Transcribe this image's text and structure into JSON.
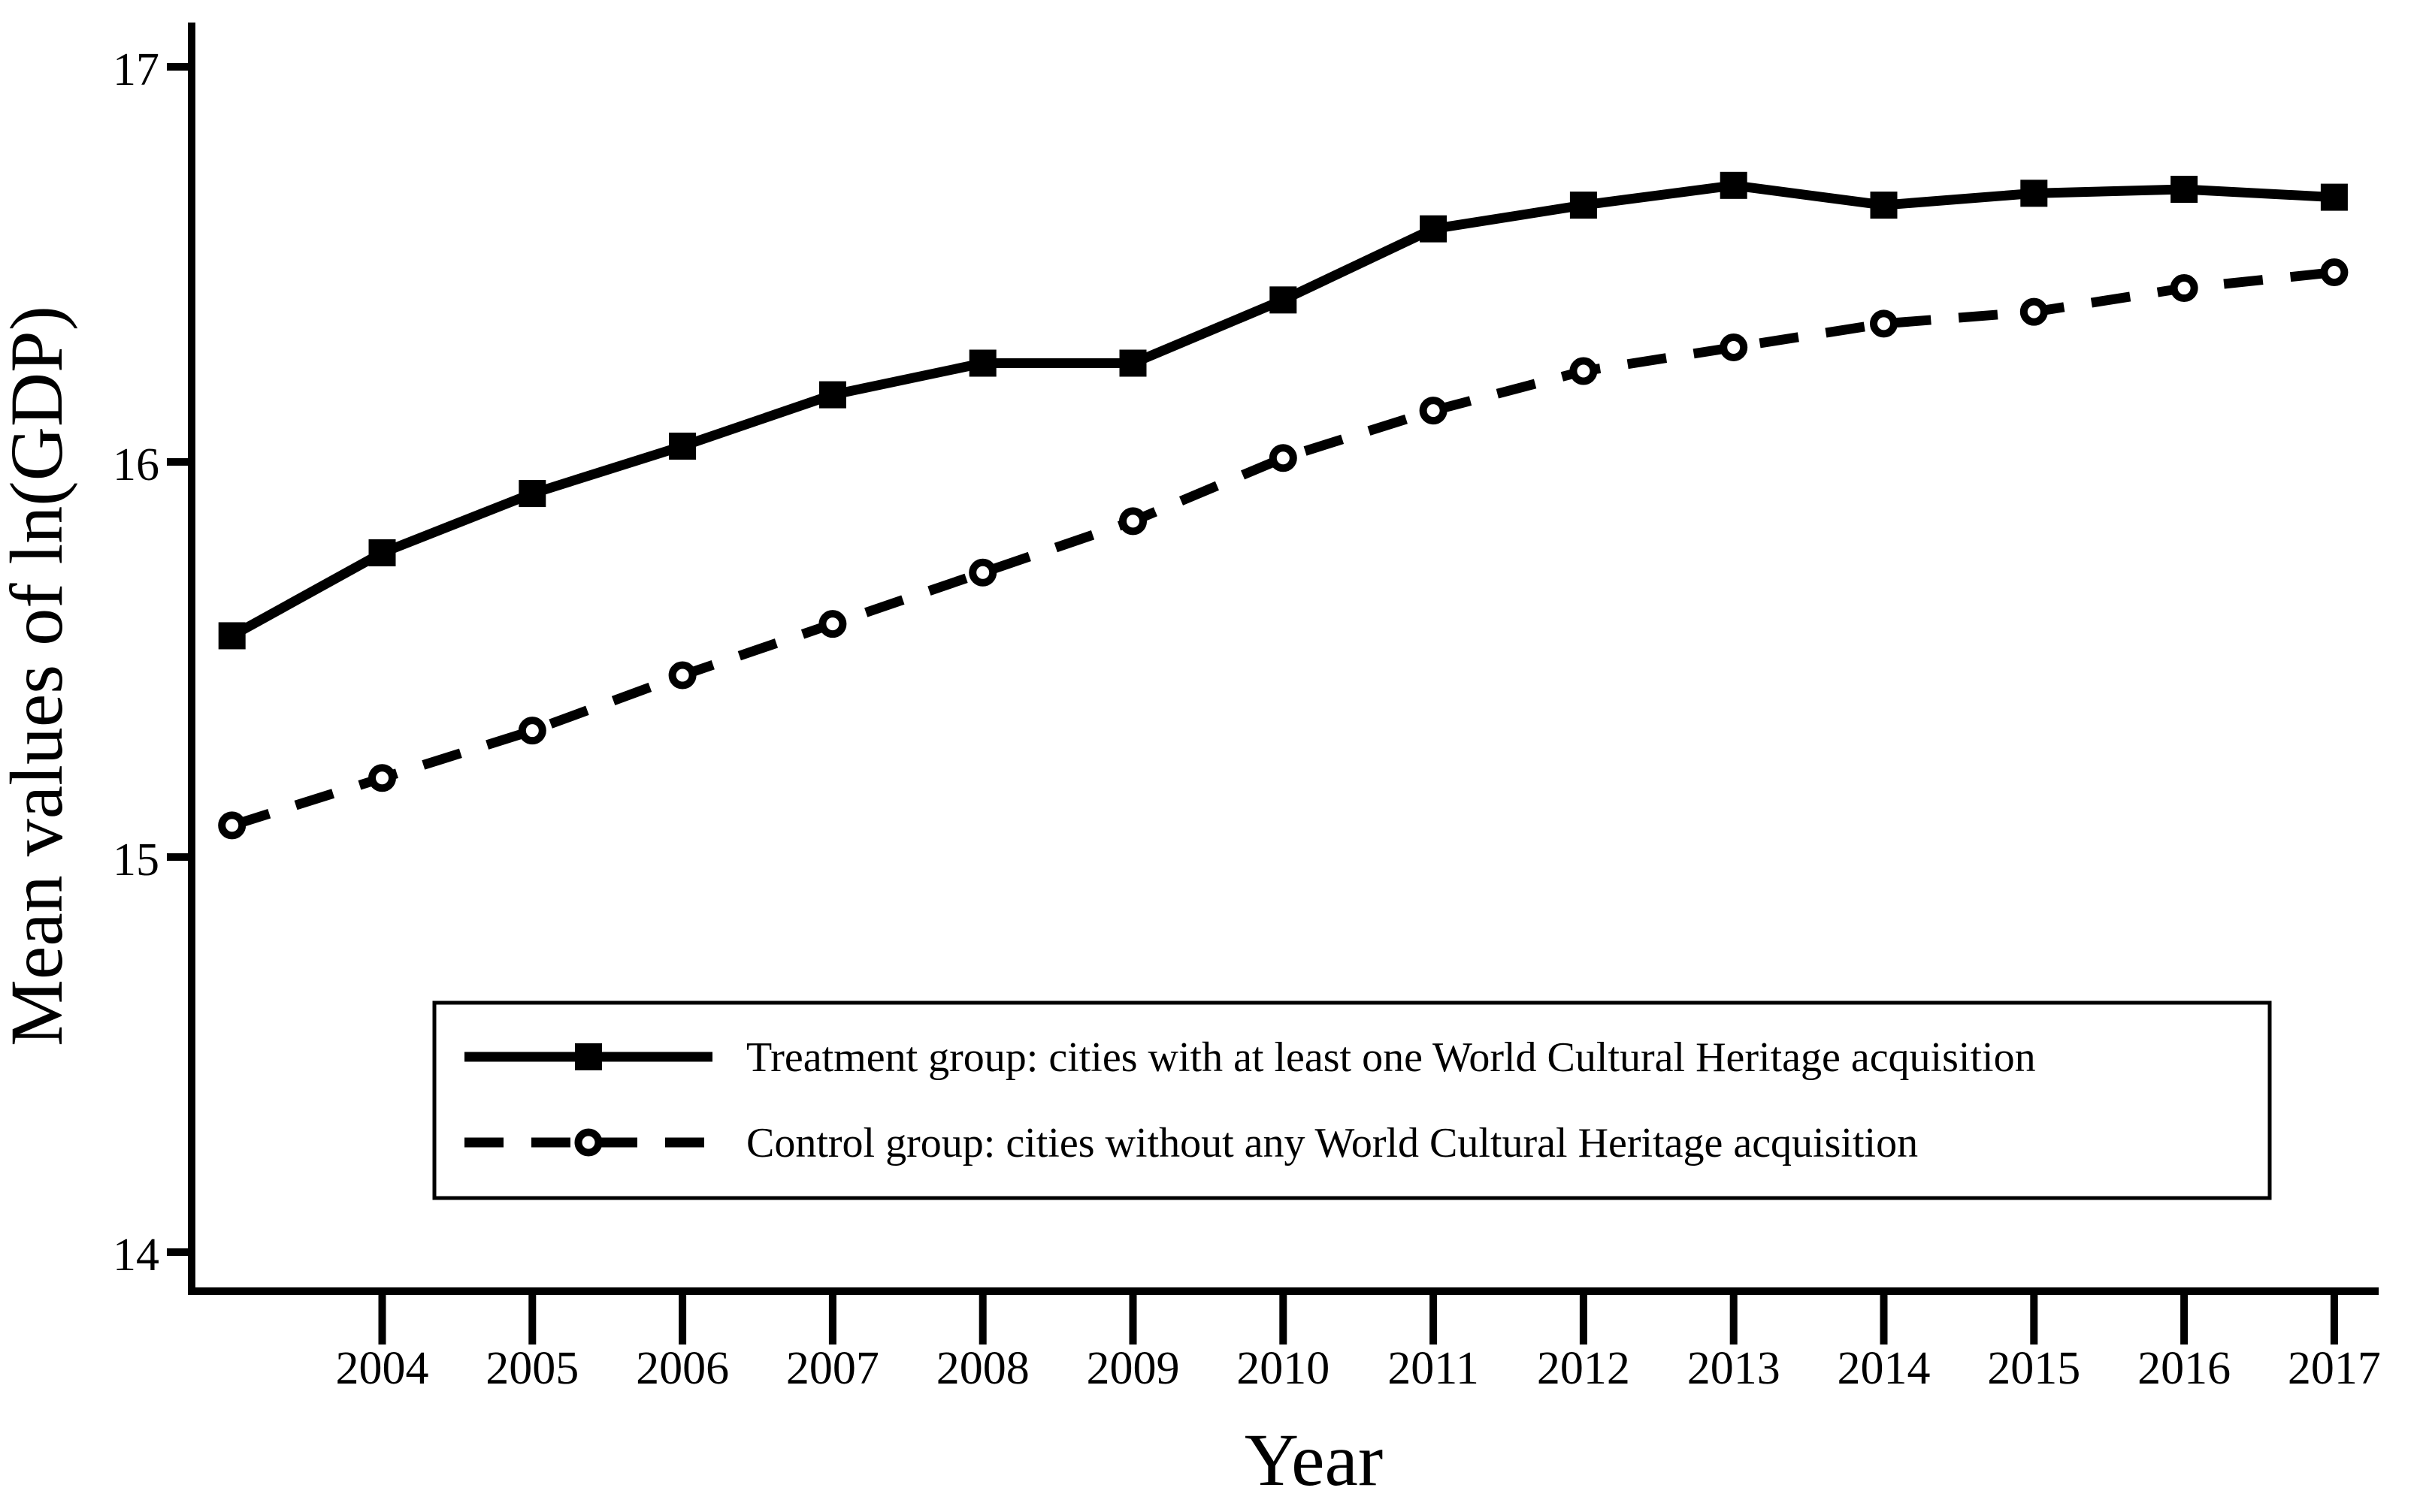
{
  "figure": {
    "background": "#ffffff",
    "ink": "#000000"
  },
  "chart_data": {
    "type": "line",
    "title": "",
    "xlabel": "Year",
    "ylabel": "Mean values of ln(GDP)",
    "x": [
      2003,
      2004,
      2005,
      2006,
      2007,
      2008,
      2009,
      2010,
      2011,
      2012,
      2013,
      2014,
      2015,
      2016,
      2017
    ],
    "x_tick_years": [
      2004,
      2005,
      2006,
      2007,
      2008,
      2009,
      2010,
      2011,
      2012,
      2013,
      2014,
      2015,
      2016,
      2017
    ],
    "y_ticks": [
      17,
      16,
      15,
      14
    ],
    "xlim": [
      2003,
      2017.3
    ],
    "ylim": [
      13.9,
      17.1
    ],
    "grid": false,
    "legend_position": "inside-bottom-left",
    "series": [
      {
        "id": "treatment",
        "name": "Treatment group: cities with at least one World Cultural Heritage acquisition",
        "line_style": "solid",
        "marker": "filled-square",
        "values": [
          15.56,
          15.77,
          15.92,
          16.04,
          16.17,
          16.25,
          16.25,
          16.41,
          16.59,
          16.65,
          16.7,
          16.65,
          16.68,
          16.69,
          16.67
        ]
      },
      {
        "id": "control",
        "name": "Control group: cities without any World Cultural Heritage acquisition",
        "line_style": "dashed",
        "marker": "open-circle",
        "values": [
          15.08,
          15.2,
          15.32,
          15.46,
          15.59,
          15.72,
          15.85,
          16.01,
          16.13,
          16.23,
          16.29,
          16.35,
          16.38,
          16.44,
          16.48
        ]
      }
    ]
  }
}
